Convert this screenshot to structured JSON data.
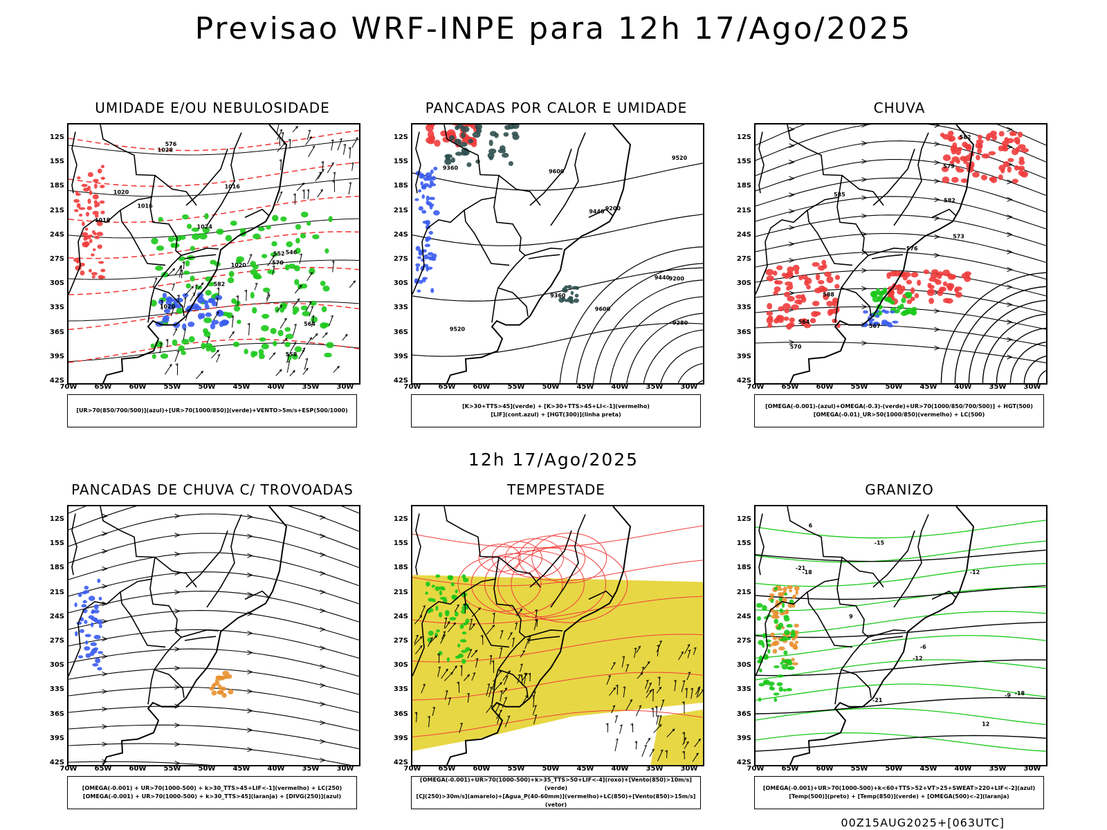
{
  "header": {
    "title": "Previsao WRF-INPE  para 12h 17/Ago/2025",
    "mid_title": "12h 17/Ago/2025",
    "run_stamp": "00Z15AUG2025+[063UTC]"
  },
  "axes": {
    "lat_labels": [
      "12S",
      "15S",
      "18S",
      "21S",
      "24S",
      "27S",
      "30S",
      "33S",
      "36S",
      "39S",
      "42S"
    ],
    "lon_labels": [
      "70W",
      "65W",
      "60W",
      "55W",
      "50W",
      "45W",
      "40W",
      "35W",
      "30W"
    ]
  },
  "colors": {
    "blue": "#3a5cf0",
    "green": "#19c819",
    "red": "#f03c3c",
    "yellow": "#e6d53a",
    "darkgreen": "#2f4f4f",
    "orange": "#e8902f",
    "black": "#000000"
  },
  "panels": [
    {
      "id": "umidade",
      "title": "UMIDADE E/OU NEBULOSIDADE",
      "legend": [
        "[UR>70(850/700/500)](azul)+[UR>70(1000/850)](verde)+VENTO>5m/s+ESP(500/1000)"
      ],
      "contour_labels": [
        "1016",
        "1020",
        "1024",
        "1028",
        "1020",
        "1016",
        "1018",
        "1020",
        "564",
        "570",
        "576",
        "552",
        "558",
        "546",
        "582"
      ]
    },
    {
      "id": "pancadas-calor",
      "title": "PANCADAS POR CALOR E UMIDADE",
      "legend": [
        "[K>30+TTS>45](verde) + [K>30+TTS>45+LI<-1](vermelho)",
        "[LIF](cont.azul) + [HGT(300)](linha preta)"
      ],
      "contour_labels": [
        "9600",
        "9600",
        "9520",
        "9520",
        "9440",
        "9440",
        "9360",
        "9360",
        "9280",
        "9200",
        "9200"
      ]
    },
    {
      "id": "chuva",
      "title": "CHUVA",
      "legend": [
        "[OMEGA(-0.001)-(azul)+OMEGA(-0.3)-(verde)+UR>70(1000/850/700/500)] + HGT(500)",
        "[OMEGA(-0.01)_UR>50(1000/850)(vermelho) + LC(500)"
      ],
      "contour_labels": [
        "582",
        "585",
        "582",
        "579",
        "576",
        "573",
        "570",
        "567",
        "564",
        "588"
      ]
    },
    {
      "id": "pancadas-trovoadas",
      "title": "PANCADAS DE CHUVA C/ TROVOADAS",
      "legend": [
        "[OMEGA(-0.001) + UR>70(1000-500) + k>30_TTS>45+LIF<-1](vermelho) + LC(250)",
        "[OMEGA(-0.001) + UR>70(1000-500) + k>30_TTS>45](laranja) + [DIVG(250)](azul)"
      ],
      "contour_labels": []
    },
    {
      "id": "tempestade",
      "title": "TEMPESTADE",
      "legend": [
        "[OMEGA(-0.001)+UR>70(1000-500)+k>35_TTS>50+LIF<-4](roxo)+[Vento(850)>10m/s](verde)",
        "[CJ(250)>30m/s](amarelo)+[Agua_P(40-60mm)](vermelho)+LC(850)+[Vento(850)>15m/s](vetor)"
      ],
      "contour_labels": []
    },
    {
      "id": "granizo",
      "title": "GRANIZO",
      "legend": [
        "[OMEGA(-0.001)+UR>70(1000-500)+k<60+TTS>52+VT>25+SWEAT>220+LIF<-2](azul)",
        "[Temp(500)](preto) + [Temp(850)](verde) + [OMEGA(500)<-2](laranja)"
      ],
      "contour_labels": [
        "-6",
        "-9",
        "-12",
        "-12",
        "-15",
        "-18",
        "-18",
        "-21",
        "-21",
        "12",
        "9",
        "6"
      ]
    }
  ]
}
